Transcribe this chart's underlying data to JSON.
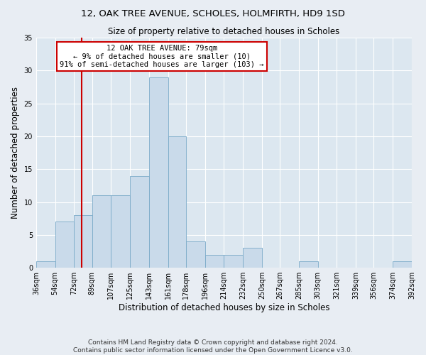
{
  "title1": "12, OAK TREE AVENUE, SCHOLES, HOLMFIRTH, HD9 1SD",
  "title2": "Size of property relative to detached houses in Scholes",
  "xlabel": "Distribution of detached houses by size in Scholes",
  "ylabel": "Number of detached properties",
  "footnote1": "Contains HM Land Registry data © Crown copyright and database right 2024.",
  "footnote2": "Contains public sector information licensed under the Open Government Licence v3.0.",
  "annotation_line1": "12 OAK TREE AVENUE: 79sqm",
  "annotation_line2": "← 9% of detached houses are smaller (10)",
  "annotation_line3": "91% of semi-detached houses are larger (103) →",
  "bar_edges": [
    36,
    54,
    72,
    89,
    107,
    125,
    143,
    161,
    178,
    196,
    214,
    232,
    250,
    267,
    285,
    303,
    321,
    339,
    356,
    374,
    392
  ],
  "bar_heights": [
    1,
    7,
    8,
    11,
    11,
    14,
    29,
    20,
    4,
    2,
    2,
    3,
    0,
    0,
    1,
    0,
    0,
    0,
    0,
    1
  ],
  "bar_color": "#c9daea",
  "bar_edge_color": "#7aaac8",
  "vline_x": 79,
  "vline_color": "#cc0000",
  "annotation_box_color": "#cc0000",
  "annotation_box_facecolor": "#ffffff",
  "ylim": [
    0,
    35
  ],
  "yticks": [
    0,
    5,
    10,
    15,
    20,
    25,
    30,
    35
  ],
  "bg_color": "#e8edf3",
  "plot_bg_color": "#dce7f0",
  "grid_color": "#ffffff",
  "title1_fontsize": 9.5,
  "title2_fontsize": 8.5,
  "xlabel_fontsize": 8.5,
  "ylabel_fontsize": 8.5,
  "tick_fontsize": 7,
  "footnote_fontsize": 6.5,
  "annotation_fontsize": 7.5
}
